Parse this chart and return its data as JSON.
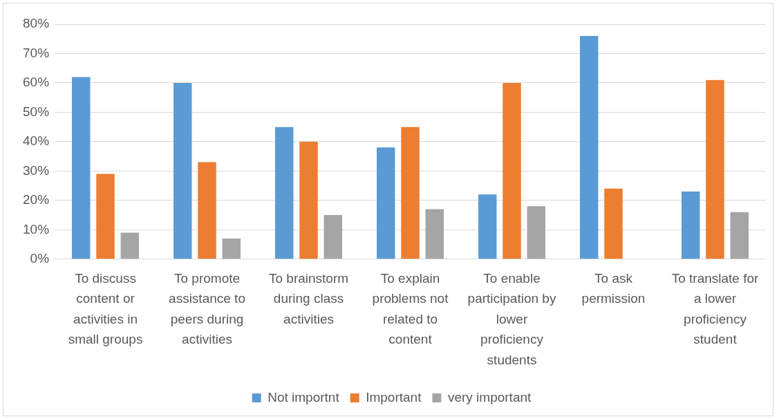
{
  "chart_data": {
    "type": "bar",
    "categories": [
      "To discuss content or activities in small groups",
      "To promote assistance to peers during activities",
      "To brainstorm during class activities",
      "To explain problems not related to content",
      "To enable participation by lower proficiency students",
      "To ask permission",
      "To translate for a lower proficiency student"
    ],
    "series": [
      {
        "name": "Not importnt",
        "color": "#5b9bd5",
        "values": [
          62,
          60,
          45,
          38,
          22,
          76,
          23
        ]
      },
      {
        "name": "Important",
        "color": "#ed7d31",
        "values": [
          29,
          33,
          40,
          45,
          60,
          24,
          61
        ]
      },
      {
        "name": "very important",
        "color": "#a5a5a5",
        "values": [
          9,
          7,
          15,
          17,
          18,
          0,
          16
        ]
      }
    ],
    "ylim": [
      0,
      80
    ],
    "yticks": [
      {
        "value": 0,
        "label": "0%"
      },
      {
        "value": 10,
        "label": "10%"
      },
      {
        "value": 20,
        "label": "20%"
      },
      {
        "value": 30,
        "label": "30%"
      },
      {
        "value": 40,
        "label": "40%"
      },
      {
        "value": 50,
        "label": "50%"
      },
      {
        "value": 60,
        "label": "60%"
      },
      {
        "value": 70,
        "label": "70%"
      },
      {
        "value": 80,
        "label": "80%"
      }
    ],
    "grid": "y",
    "legend": "bottom"
  }
}
